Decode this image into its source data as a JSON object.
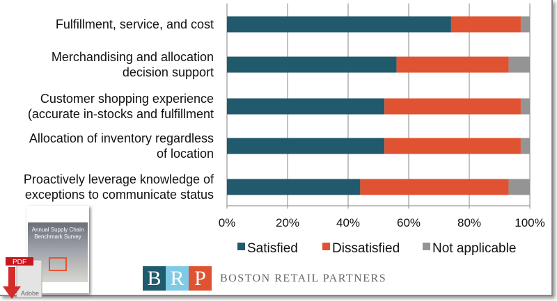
{
  "chart_data": {
    "type": "bar",
    "orientation": "horizontal",
    "stacked": true,
    "percent": true,
    "categories": [
      [
        "Fulfillment, service, and cost"
      ],
      [
        "Merchandising and allocation",
        "decision support"
      ],
      [
        "Customer shopping experience",
        "(accurate in-stocks and fulfillment"
      ],
      [
        "Allocation of inventory regardless",
        "of location"
      ],
      [
        "Proactively leverage knowledge of",
        "exceptions to communicate status"
      ]
    ],
    "series": [
      {
        "name": "Satisfied",
        "color": "#215a6c",
        "values": [
          74,
          56,
          52,
          52,
          44
        ]
      },
      {
        "name": "Dissatisfied",
        "color": "#e05332",
        "values": [
          23,
          37,
          45,
          45,
          49
        ]
      },
      {
        "name": "Not applicable",
        "color": "#949494",
        "values": [
          3,
          7,
          3,
          3,
          7
        ]
      }
    ],
    "xlim": [
      0,
      100
    ],
    "xticks": [
      "0%",
      "20%",
      "40%",
      "60%",
      "80%",
      "100%"
    ],
    "grid": true,
    "legend": "bottom"
  },
  "footer": {
    "pdf_badge": "PDF",
    "adobe_label": "Adobe",
    "cover_title": "Annual Supply Chain Benchmark Survey",
    "logo_letters": [
      "B",
      "R",
      "P"
    ],
    "logo_colors": [
      "#215a6c",
      "#7fcbe6",
      "#e05332"
    ],
    "company_name": "BOSTON RETAIL PARTNERS"
  }
}
